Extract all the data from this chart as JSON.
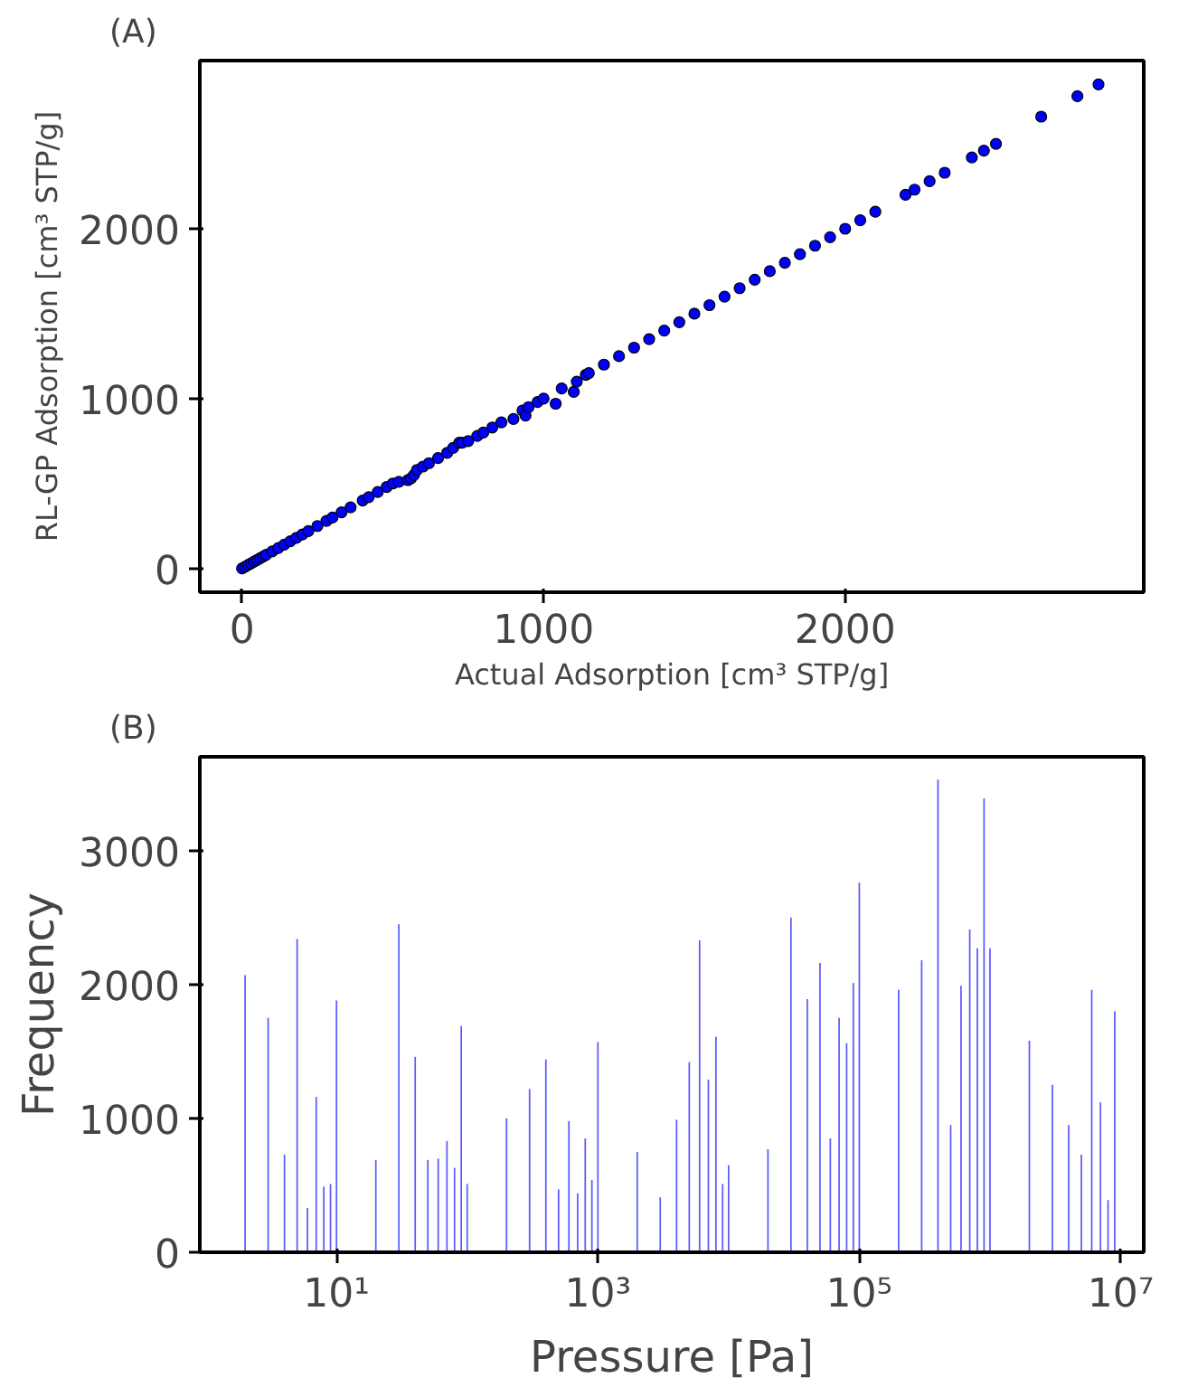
{
  "chart_data": [
    {
      "type": "scatter",
      "xlabel": "Actual Adsorption [cm³ STP/g]",
      "ylabel": "RL-GP Adsorption [cm³ STP/g]",
      "annotations": [
        "(A)"
      ],
      "marker": "circle",
      "color": "#0000ff",
      "grid": false,
      "xlim": [
        -140,
        2990
      ],
      "ylim": [
        -140,
        2990
      ],
      "xticks": [
        0,
        1000,
        2000
      ],
      "yticks": [
        0,
        1000,
        2000
      ],
      "x": [
        0,
        10,
        20,
        30,
        40,
        50,
        60,
        70,
        80,
        100,
        120,
        140,
        160,
        180,
        200,
        220,
        250,
        280,
        300,
        330,
        360,
        400,
        420,
        450,
        480,
        500,
        520,
        550,
        560,
        570,
        580,
        600,
        620,
        650,
        680,
        700,
        720,
        730,
        750,
        780,
        800,
        830,
        860,
        900,
        930,
        940,
        950,
        980,
        1000,
        1040,
        1060,
        1100,
        1110,
        1140,
        1150,
        1200,
        1250,
        1300,
        1350,
        1400,
        1450,
        1500,
        1550,
        1600,
        1650,
        1700,
        1750,
        1800,
        1850,
        1900,
        1950,
        2000,
        2050,
        2100,
        2200,
        2230,
        2280,
        2330,
        2420,
        2460,
        2500,
        2650,
        2770,
        2840
      ],
      "values": [
        0,
        10,
        20,
        30,
        40,
        50,
        60,
        70,
        80,
        100,
        120,
        140,
        160,
        180,
        200,
        220,
        250,
        280,
        300,
        330,
        360,
        400,
        420,
        450,
        480,
        500,
        510,
        520,
        530,
        550,
        580,
        600,
        620,
        650,
        680,
        710,
        740,
        740,
        750,
        780,
        800,
        830,
        860,
        880,
        930,
        900,
        950,
        980,
        1000,
        970,
        1060,
        1040,
        1100,
        1140,
        1150,
        1200,
        1250,
        1300,
        1350,
        1400,
        1450,
        1500,
        1550,
        1600,
        1650,
        1700,
        1750,
        1800,
        1850,
        1900,
        1950,
        2000,
        2050,
        2100,
        2200,
        2230,
        2280,
        2330,
        2420,
        2460,
        2500,
        2660,
        2780,
        2850
      ]
    },
    {
      "type": "bar",
      "xlabel": "Pressure [Pa]",
      "ylabel": "Frequency",
      "annotations": [
        "(B)"
      ],
      "color": "#5a5aff",
      "log": "x",
      "grid": false,
      "xlim": [
        0.9,
        15000000
      ],
      "ylim": [
        0,
        3700
      ],
      "yticks": [
        0,
        1000,
        2000,
        3000
      ],
      "xticks": [
        {
          "value": 10,
          "label": "10¹"
        },
        {
          "value": 1000,
          "label": "10³"
        },
        {
          "value": 100000,
          "label": "10⁵"
        },
        {
          "value": 10000000,
          "label": "10⁷"
        }
      ],
      "x": [
        2,
        3,
        4,
        5,
        6,
        7,
        8,
        9,
        10,
        20,
        30,
        40,
        50,
        60,
        70,
        80,
        90,
        100,
        200,
        300,
        400,
        500,
        600,
        700,
        800,
        900,
        1000,
        2000,
        3000,
        4000,
        5000,
        6000,
        7000,
        8000,
        9000,
        10000,
        20000,
        30000,
        40000,
        50000,
        60000,
        70000,
        80000,
        90000,
        100000,
        200000,
        300000,
        400000,
        500000,
        600000,
        700000,
        800000,
        900000,
        1000000,
        2000000,
        3000000,
        4000000,
        5000000,
        6000000,
        7000000,
        8000000,
        9000000
      ],
      "values": [
        2070,
        1750,
        730,
        2340,
        330,
        1160,
        490,
        510,
        1880,
        690,
        2450,
        1460,
        690,
        700,
        830,
        630,
        1690,
        510,
        1000,
        1220,
        1440,
        470,
        980,
        440,
        850,
        540,
        1570,
        750,
        410,
        990,
        1420,
        2330,
        1290,
        1610,
        510,
        650,
        770,
        2500,
        1890,
        2160,
        850,
        1750,
        1560,
        2010,
        2760,
        1960,
        2180,
        3530,
        950,
        1990,
        2410,
        2270,
        3390,
        2270,
        1580,
        1250,
        950,
        730,
        1960,
        1120,
        390,
        1800
      ]
    }
  ]
}
